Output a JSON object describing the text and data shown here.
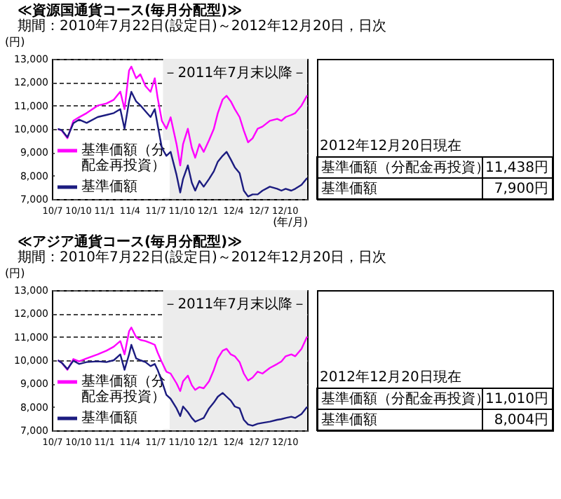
{
  "chart_data": [
    {
      "type": "line",
      "title": "≪資源国通貨コース(毎月分配型)≫",
      "subtitle": "期間：2010年7月22日(設定日)～2012年12月20日，日次",
      "ylabel": "(円)",
      "xlabel": "(年/月)",
      "x": [
        "2010-07-22",
        "2010-08-05",
        "2010-08-25",
        "2010-09-15",
        "2010-10-05",
        "2010-11-01",
        "2010-12-10",
        "2011-01-10",
        "2011-02-05",
        "2011-02-28",
        "2011-03-15",
        "2011-03-31",
        "2011-04-08",
        "2011-04-25",
        "2011-05-10",
        "2011-05-28",
        "2011-06-15",
        "2011-06-30",
        "2011-07-10",
        "2011-07-25",
        "2011-08-10",
        "2011-08-25",
        "2011-09-15",
        "2011-09-28",
        "2011-10-08",
        "2011-10-25",
        "2011-11-08",
        "2011-11-20",
        "2011-12-05",
        "2011-12-20",
        "2012-01-08",
        "2012-01-25",
        "2012-02-08",
        "2012-02-25",
        "2012-03-10",
        "2012-03-25",
        "2012-04-08",
        "2012-04-25",
        "2012-05-10",
        "2012-05-25",
        "2012-06-10",
        "2012-06-28",
        "2012-07-15",
        "2012-08-10",
        "2012-09-05",
        "2012-09-20",
        "2012-10-05",
        "2012-10-25",
        "2012-11-08",
        "2012-11-30",
        "2012-12-20"
      ],
      "series": [
        {
          "name": "基準価額（分配金再投資）",
          "color": "#ff00ff",
          "values": [
            10000,
            9930,
            9600,
            10350,
            10500,
            10680,
            11000,
            11090,
            11250,
            11600,
            10850,
            12500,
            12670,
            12170,
            12340,
            11840,
            11590,
            12170,
            11340,
            10350,
            10010,
            10500,
            9350,
            8440,
            9350,
            10010,
            9190,
            8770,
            9350,
            9020,
            9520,
            10010,
            10680,
            11260,
            11420,
            11180,
            10850,
            10510,
            9930,
            9430,
            9600,
            10010,
            10100,
            10350,
            10430,
            10350,
            10510,
            10600,
            10680,
            11000,
            11438
          ]
        },
        {
          "name": "基準価額",
          "color": "#1c1c80",
          "values": [
            10000,
            9950,
            9650,
            10250,
            10400,
            10260,
            10510,
            10600,
            10680,
            10850,
            10010,
            11180,
            11590,
            11180,
            11010,
            10760,
            10510,
            10850,
            10180,
            9190,
            8850,
            9020,
            8030,
            7280,
            7860,
            8440,
            7700,
            7360,
            7780,
            7530,
            7860,
            8190,
            8600,
            8850,
            9020,
            8690,
            8360,
            8110,
            7360,
            7110,
            7200,
            7200,
            7360,
            7530,
            7440,
            7360,
            7440,
            7360,
            7440,
            7610,
            7900
          ]
        }
      ],
      "xlim": [
        "2010-07-01",
        "2012-12-20"
      ],
      "xticks": [
        {
          "value": "2010-07-01",
          "label": "10/7"
        },
        {
          "value": "2010-10-01",
          "label": "10/10"
        },
        {
          "value": "2011-01-01",
          "label": "11/1"
        },
        {
          "value": "2011-04-01",
          "label": "11/4"
        },
        {
          "value": "2011-07-01",
          "label": "11/7"
        },
        {
          "value": "2011-10-01",
          "label": "11/10"
        },
        {
          "value": "2012-01-01",
          "label": "12/1"
        },
        {
          "value": "2012-04-01",
          "label": "12/4"
        },
        {
          "value": "2012-07-01",
          "label": "12/7"
        },
        {
          "value": "2012-10-01",
          "label": "12/10"
        }
      ],
      "ylim": [
        7000,
        13000
      ],
      "yticks": [
        {
          "value": 7000,
          "label": "7,000"
        },
        {
          "value": 8000,
          "label": "8,000"
        },
        {
          "value": 9000,
          "label": "9,000"
        },
        {
          "value": 10000,
          "label": "10,000"
        },
        {
          "value": 11000,
          "label": "11,000"
        },
        {
          "value": 12000,
          "label": "12,000"
        },
        {
          "value": 13000,
          "label": "13,000"
        }
      ],
      "bands": [
        {
          "axis": "x",
          "from": "2011-07-29",
          "to": "2012-12-20",
          "label": "－2011年7月末以降－",
          "color": "#ececec"
        }
      ],
      "grid": "y",
      "legend": "bottom left",
      "line_style": "solid",
      "annotations": [
        "2012年12月20日現在",
        "基準価額（分配金再投資）",
        "11,438円",
        "基準価額",
        "7,900円"
      ]
    },
    {
      "type": "line",
      "title": "≪アジア通貨コース(毎月分配型)≫",
      "subtitle": "期間：2010年7月22日(設定日)～2012年12月20日，日次",
      "ylabel": "(円)",
      "x": [
        "2010-07-22",
        "2010-08-05",
        "2010-08-25",
        "2010-09-15",
        "2010-10-05",
        "2010-11-01",
        "2010-12-10",
        "2011-01-10",
        "2011-02-05",
        "2011-02-28",
        "2011-03-15",
        "2011-03-31",
        "2011-04-08",
        "2011-04-25",
        "2011-05-10",
        "2011-05-28",
        "2011-06-15",
        "2011-06-30",
        "2011-07-10",
        "2011-07-25",
        "2011-08-10",
        "2011-08-25",
        "2011-09-15",
        "2011-09-28",
        "2011-10-08",
        "2011-10-25",
        "2011-11-08",
        "2011-11-20",
        "2011-12-05",
        "2011-12-20",
        "2012-01-08",
        "2012-01-25",
        "2012-02-08",
        "2012-02-25",
        "2012-03-10",
        "2012-03-25",
        "2012-04-08",
        "2012-04-25",
        "2012-05-10",
        "2012-05-25",
        "2012-06-10",
        "2012-06-28",
        "2012-07-15",
        "2012-08-10",
        "2012-09-05",
        "2012-09-20",
        "2012-10-05",
        "2012-10-25",
        "2012-11-08",
        "2012-11-30",
        "2012-12-20"
      ],
      "series": [
        {
          "name": "基準価額（分配金再投資）",
          "color": "#ff00ff",
          "values": [
            10000,
            9890,
            9590,
            10050,
            9950,
            10080,
            10250,
            10410,
            10580,
            10820,
            10250,
            11240,
            11400,
            10990,
            10870,
            10820,
            10740,
            10660,
            10330,
            9920,
            9510,
            9430,
            9010,
            8680,
            9100,
            9340,
            8930,
            8730,
            8850,
            8800,
            9100,
            9590,
            10080,
            10410,
            10490,
            10250,
            10170,
            9920,
            9430,
            9130,
            9260,
            9510,
            9430,
            9670,
            9840,
            9950,
            10170,
            10250,
            10170,
            10490,
            11010
          ]
        },
        {
          "name": "基準価額",
          "color": "#1c1c80",
          "values": [
            10000,
            9890,
            9620,
            9980,
            9840,
            9920,
            9950,
            9920,
            10000,
            10250,
            9590,
            10250,
            10660,
            10080,
            10000,
            9920,
            9750,
            9840,
            9590,
            9100,
            8520,
            8350,
            7940,
            7610,
            8020,
            7780,
            7530,
            7370,
            7450,
            7530,
            7940,
            8190,
            8440,
            8600,
            8440,
            8270,
            8020,
            7940,
            7450,
            7250,
            7200,
            7280,
            7320,
            7370,
            7450,
            7480,
            7530,
            7580,
            7530,
            7700,
            8004
          ]
        }
      ],
      "xlim": [
        "2010-07-01",
        "2012-12-20"
      ],
      "xticks": [
        {
          "value": "2010-07-01",
          "label": "10/7"
        },
        {
          "value": "2010-10-01",
          "label": "10/10"
        },
        {
          "value": "2011-01-01",
          "label": "11/1"
        },
        {
          "value": "2011-04-01",
          "label": "11/4"
        },
        {
          "value": "2011-07-01",
          "label": "11/7"
        },
        {
          "value": "2011-10-01",
          "label": "11/10"
        },
        {
          "value": "2012-01-01",
          "label": "12/1"
        },
        {
          "value": "2012-04-01",
          "label": "12/4"
        },
        {
          "value": "2012-07-01",
          "label": "12/7"
        },
        {
          "value": "2012-10-01",
          "label": "12/10"
        }
      ],
      "ylim": [
        7000,
        13000
      ],
      "yticks": [
        {
          "value": 7000,
          "label": "7,000"
        },
        {
          "value": 8000,
          "label": "8,000"
        },
        {
          "value": 9000,
          "label": "9,000"
        },
        {
          "value": 10000,
          "label": "10,000"
        },
        {
          "value": 11000,
          "label": "11,000"
        },
        {
          "value": 12000,
          "label": "12,000"
        },
        {
          "value": 13000,
          "label": "13,000"
        }
      ],
      "bands": [
        {
          "axis": "x",
          "from": "2011-07-29",
          "to": "2012-12-20",
          "label": "－2011年7月末以降－",
          "color": "#ececec"
        }
      ],
      "grid": "y",
      "legend": "bottom left",
      "line_style": "solid",
      "annotations": [
        "2012年12月20日現在",
        "基準価額（分配金再投資）",
        "11,010円",
        "基準価額",
        "8,004円"
      ]
    }
  ]
}
